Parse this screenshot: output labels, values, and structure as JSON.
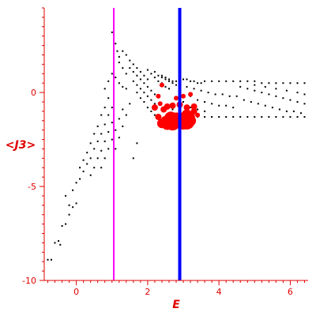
{
  "chart_data": {
    "type": "scatter",
    "xlabel": "E",
    "ylabel": "<J3>",
    "xlim": [
      -0.9,
      6.5
    ],
    "ylim": [
      -10,
      4.5
    ],
    "x_ticks": [
      0,
      2,
      4,
      6
    ],
    "y_ticks": [
      0,
      -5,
      -10
    ],
    "x_tick_labels": [
      "0",
      "2",
      "4",
      "6"
    ],
    "y_tick_labels": [
      "0",
      "-5",
      "-10"
    ],
    "grid": false,
    "vertical_lines": [
      {
        "x": 1.05,
        "color": "#ff00ff"
      },
      {
        "x": 2.9,
        "color": "#0000ff"
      }
    ],
    "series": [
      {
        "color": "#000000",
        "style": "small dots",
        "points": [
          [
            -0.8,
            -8.9
          ],
          [
            -0.7,
            -8.9
          ],
          [
            -0.6,
            -8.0
          ],
          [
            -0.5,
            -7.9
          ],
          [
            -0.45,
            -8.1
          ],
          [
            -0.4,
            -7.1
          ],
          [
            -0.3,
            -7.0
          ],
          [
            -0.2,
            -6.5
          ],
          [
            -0.1,
            -6.1
          ],
          [
            0.0,
            -5.9
          ],
          [
            -0.2,
            -6.0
          ],
          [
            -0.3,
            -5.5
          ],
          [
            -0.1,
            -5.2
          ],
          [
            0.0,
            -4.8
          ],
          [
            0.1,
            -4.6
          ],
          [
            0.2,
            -4.2
          ],
          [
            0.3,
            -3.8
          ],
          [
            0.4,
            -3.5
          ],
          [
            0.5,
            -3.0
          ],
          [
            0.6,
            -2.6
          ],
          [
            0.7,
            -2.2
          ],
          [
            0.8,
            -1.7
          ],
          [
            0.9,
            -1.2
          ],
          [
            1.0,
            -0.8
          ],
          [
            0.1,
            -4.0
          ],
          [
            0.2,
            -3.6
          ],
          [
            0.3,
            -3.2
          ],
          [
            0.4,
            -2.7
          ],
          [
            0.5,
            -2.2
          ],
          [
            0.6,
            -1.8
          ],
          [
            0.7,
            -1.2
          ],
          [
            0.8,
            -0.8
          ],
          [
            0.9,
            -0.3
          ],
          [
            0.4,
            -4.4
          ],
          [
            0.5,
            -4.0
          ],
          [
            0.6,
            -3.5
          ],
          [
            0.7,
            -3.1
          ],
          [
            0.8,
            -2.6
          ],
          [
            0.9,
            -2.1
          ],
          [
            1.0,
            -1.6
          ],
          [
            0.7,
            -4.0
          ],
          [
            0.8,
            -3.5
          ],
          [
            0.9,
            -3.0
          ],
          [
            1.0,
            -2.5
          ],
          [
            1.1,
            -2.0
          ],
          [
            1.2,
            -1.4
          ],
          [
            1.3,
            -0.9
          ],
          [
            1.1,
            -3.0
          ],
          [
            1.2,
            -2.4
          ],
          [
            1.3,
            -1.8
          ],
          [
            1.4,
            -1.2
          ],
          [
            1.5,
            -0.6
          ],
          [
            1.6,
            -3.5
          ],
          [
            1.7,
            -2.7
          ],
          [
            1.0,
            3.2
          ],
          [
            1.05,
            3.0
          ],
          [
            1.1,
            2.6
          ],
          [
            1.15,
            2.2
          ],
          [
            1.2,
            1.9
          ],
          [
            1.0,
            1.0
          ],
          [
            0.9,
            0.6
          ],
          [
            0.8,
            0.2
          ],
          [
            1.1,
            0.8
          ],
          [
            1.2,
            0.5
          ],
          [
            1.3,
            0.3
          ],
          [
            1.4,
            0.2
          ],
          [
            1.2,
            1.6
          ],
          [
            1.3,
            1.3
          ],
          [
            1.4,
            1.0
          ],
          [
            1.3,
            2.2
          ],
          [
            1.4,
            2.0
          ],
          [
            1.5,
            1.7
          ],
          [
            1.6,
            1.5
          ],
          [
            1.7,
            1.3
          ],
          [
            1.8,
            1.1
          ],
          [
            1.9,
            0.9
          ],
          [
            2.0,
            0.7
          ],
          [
            1.5,
            1.3
          ],
          [
            1.6,
            1.1
          ],
          [
            1.7,
            0.9
          ],
          [
            1.8,
            0.7
          ],
          [
            1.9,
            0.5
          ],
          [
            2.0,
            0.3
          ],
          [
            2.1,
            0.1
          ],
          [
            2.2,
            -0.1
          ],
          [
            1.6,
            0.6
          ],
          [
            1.7,
            0.4
          ],
          [
            1.8,
            0.2
          ],
          [
            1.9,
            0.0
          ],
          [
            2.0,
            -0.2
          ],
          [
            2.1,
            -0.4
          ],
          [
            2.2,
            -0.6
          ],
          [
            1.7,
            0.0
          ],
          [
            1.8,
            -0.3
          ],
          [
            1.9,
            -0.5
          ],
          [
            2.0,
            -0.8
          ],
          [
            2.1,
            -1.0
          ],
          [
            2.2,
            -1.2
          ],
          [
            2.0,
            1.2
          ],
          [
            2.1,
            1.0
          ],
          [
            2.2,
            0.8
          ],
          [
            2.3,
            0.6
          ],
          [
            2.4,
            0.5
          ],
          [
            2.5,
            0.3
          ],
          [
            2.6,
            0.2
          ],
          [
            2.2,
            1.1
          ],
          [
            2.3,
            0.9
          ],
          [
            2.4,
            0.8
          ],
          [
            2.5,
            0.7
          ],
          [
            2.6,
            0.6
          ],
          [
            2.7,
            0.5
          ],
          [
            2.8,
            0.4
          ],
          [
            2.4,
            0.9
          ],
          [
            2.5,
            0.8
          ],
          [
            2.6,
            0.7
          ],
          [
            2.7,
            0.6
          ],
          [
            2.8,
            0.6
          ],
          [
            2.9,
            0.5
          ],
          [
            3.0,
            0.7
          ],
          [
            3.1,
            0.7
          ],
          [
            3.2,
            0.6
          ],
          [
            3.3,
            0.6
          ],
          [
            3.4,
            0.5
          ],
          [
            3.5,
            0.5
          ],
          [
            3.6,
            0.6
          ],
          [
            3.8,
            0.6
          ],
          [
            4.0,
            0.6
          ],
          [
            4.2,
            0.6
          ],
          [
            4.4,
            0.6
          ],
          [
            4.6,
            0.6
          ],
          [
            4.8,
            0.6
          ],
          [
            5.0,
            0.6
          ],
          [
            5.2,
            0.5
          ],
          [
            5.4,
            0.5
          ],
          [
            5.6,
            0.5
          ],
          [
            5.8,
            0.5
          ],
          [
            6.0,
            0.5
          ],
          [
            6.2,
            0.5
          ],
          [
            6.4,
            0.5
          ],
          [
            3.1,
            0.3
          ],
          [
            3.3,
            0.2
          ],
          [
            3.5,
            0.1
          ],
          [
            3.7,
            0.0
          ],
          [
            3.9,
            -0.1
          ],
          [
            4.1,
            -0.1
          ],
          [
            4.3,
            -0.2
          ],
          [
            4.5,
            -0.2
          ],
          [
            3.2,
            -0.2
          ],
          [
            3.4,
            -0.4
          ],
          [
            3.6,
            -0.5
          ],
          [
            3.8,
            -0.6
          ],
          [
            4.0,
            -0.7
          ],
          [
            4.2,
            -0.7
          ],
          [
            4.4,
            -0.8
          ],
          [
            3.4,
            -1.3
          ],
          [
            3.6,
            -1.3
          ],
          [
            3.8,
            -1.3
          ],
          [
            4.0,
            -1.3
          ],
          [
            4.2,
            -1.3
          ],
          [
            4.4,
            -1.3
          ],
          [
            4.6,
            -1.3
          ],
          [
            4.8,
            -1.3
          ],
          [
            5.0,
            -1.3
          ],
          [
            5.2,
            -1.3
          ],
          [
            5.4,
            -1.3
          ],
          [
            5.6,
            -1.3
          ],
          [
            5.8,
            -1.3
          ],
          [
            6.0,
            -1.3
          ],
          [
            6.2,
            -1.3
          ],
          [
            6.4,
            -1.3
          ],
          [
            4.6,
            0.3
          ],
          [
            4.8,
            0.2
          ],
          [
            5.0,
            0.1
          ],
          [
            5.2,
            0.0
          ],
          [
            5.4,
            -0.1
          ],
          [
            5.6,
            -0.2
          ],
          [
            5.8,
            -0.3
          ],
          [
            6.0,
            -0.4
          ],
          [
            6.2,
            -0.5
          ],
          [
            6.4,
            -0.6
          ],
          [
            4.7,
            -0.4
          ],
          [
            4.9,
            -0.5
          ],
          [
            5.1,
            -0.6
          ],
          [
            5.3,
            -0.7
          ],
          [
            5.5,
            -0.8
          ],
          [
            5.7,
            -0.9
          ],
          [
            5.9,
            -1.0
          ],
          [
            6.1,
            -1.0
          ],
          [
            6.3,
            -1.1
          ],
          [
            5.0,
            0.4
          ],
          [
            5.3,
            0.3
          ],
          [
            5.6,
            0.2
          ],
          [
            5.9,
            0.1
          ],
          [
            6.2,
            0.0
          ],
          [
            6.4,
            -0.1
          ],
          [
            3.0,
            -0.5
          ],
          [
            3.2,
            -0.8
          ],
          [
            3.4,
            -0.9
          ],
          [
            3.6,
            -1.0
          ],
          [
            2.6,
            -1.2
          ],
          [
            2.7,
            -0.9
          ]
        ]
      },
      {
        "color": "#ff0000",
        "style": "filled circles",
        "points": [
          [
            2.6,
            -1.55
          ],
          [
            2.7,
            -1.6
          ],
          [
            2.75,
            -1.5
          ],
          [
            2.8,
            -1.4
          ],
          [
            2.65,
            -1.35
          ],
          [
            2.55,
            -1.7
          ],
          [
            3.05,
            -1.4
          ],
          [
            3.1,
            -1.55
          ],
          [
            3.15,
            -1.3
          ],
          [
            3.0,
            -1.6
          ],
          [
            3.2,
            -1.5
          ],
          [
            3.1,
            -1.2
          ],
          [
            2.4,
            -1.65
          ],
          [
            2.5,
            -1.5
          ],
          [
            2.45,
            -0.9
          ],
          [
            2.55,
            -0.75
          ],
          [
            2.7,
            -0.7
          ],
          [
            2.9,
            -0.65
          ],
          [
            3.1,
            -0.8
          ],
          [
            3.3,
            -0.75
          ],
          [
            3.3,
            -1.0
          ],
          [
            2.3,
            -1.3
          ],
          [
            2.2,
            -0.8
          ],
          [
            2.35,
            -0.6
          ],
          [
            2.4,
            0.4
          ],
          [
            2.8,
            -0.3
          ],
          [
            3.0,
            -0.2
          ],
          [
            3.2,
            -0.1
          ],
          [
            2.3,
            -0.2
          ],
          [
            3.4,
            -1.2
          ]
        ],
        "sizes": [
          9,
          10,
          9,
          8,
          8,
          7,
          9,
          10,
          8,
          9,
          7,
          7,
          6,
          6,
          4,
          4,
          4,
          4,
          4,
          4,
          4,
          4,
          4,
          3,
          3,
          3,
          3,
          3,
          3,
          3
        ]
      }
    ]
  }
}
